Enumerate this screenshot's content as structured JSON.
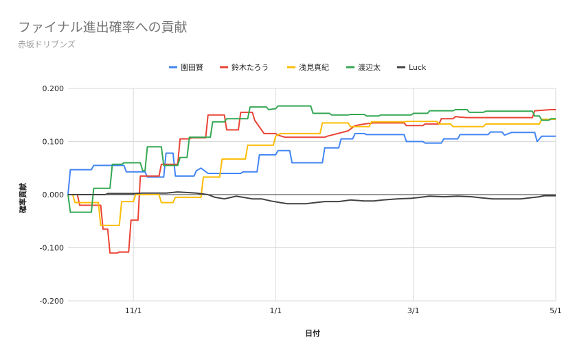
{
  "title": "ファイナル進出確率への貢献",
  "subtitle": "赤坂ドリブンズ",
  "chart_data": {
    "type": "line",
    "title": "ファイナル進出確率への貢献",
    "subtitle": "赤坂ドリブンズ",
    "xlabel": "日付",
    "ylabel": "確率貢献",
    "x_ticks": [
      "11/1",
      "1/1",
      "3/1",
      "5/1"
    ],
    "y_ticks": [
      "0.200",
      "0.100",
      "0.000",
      "-0.100",
      "-0.200"
    ],
    "y_tick_values": [
      0.2,
      0.1,
      0.0,
      -0.1,
      -0.2
    ],
    "ylim": [
      -0.2,
      0.2
    ],
    "xlim": [
      "2021-10-04",
      "2022-05-01"
    ],
    "grid": true,
    "legend_position": "top",
    "series": [
      {
        "name": "園田賢",
        "color": "#4285f4",
        "points": [
          [
            "2021-10-04",
            0.0
          ],
          [
            "2021-10-05",
            0.047
          ],
          [
            "2021-10-14",
            0.047
          ],
          [
            "2021-10-15",
            0.055
          ],
          [
            "2021-10-28",
            0.055
          ],
          [
            "2021-10-29",
            0.043
          ],
          [
            "2021-11-06",
            0.043
          ],
          [
            "2021-11-07",
            0.033
          ],
          [
            "2021-11-14",
            0.033
          ],
          [
            "2021-11-15",
            0.078
          ],
          [
            "2021-11-18",
            0.078
          ],
          [
            "2021-11-19",
            0.035
          ],
          [
            "2021-11-27",
            0.035
          ],
          [
            "2021-11-28",
            0.045
          ],
          [
            "2021-11-30",
            0.05
          ],
          [
            "2021-12-03",
            0.04
          ],
          [
            "2021-12-17",
            0.04
          ],
          [
            "2021-12-18",
            0.043
          ],
          [
            "2021-12-24",
            0.043
          ],
          [
            "2021-12-25",
            0.075
          ],
          [
            "2022-01-01",
            0.075
          ],
          [
            "2022-01-02",
            0.083
          ],
          [
            "2022-01-07",
            0.083
          ],
          [
            "2022-01-08",
            0.06
          ],
          [
            "2022-01-21",
            0.06
          ],
          [
            "2022-01-22",
            0.088
          ],
          [
            "2022-01-28",
            0.088
          ],
          [
            "2022-01-29",
            0.105
          ],
          [
            "2022-02-03",
            0.105
          ],
          [
            "2022-02-04",
            0.115
          ],
          [
            "2022-02-08",
            0.115
          ],
          [
            "2022-02-09",
            0.113
          ],
          [
            "2022-02-25",
            0.113
          ],
          [
            "2022-02-26",
            0.1
          ],
          [
            "2022-03-05",
            0.1
          ],
          [
            "2022-03-06",
            0.097
          ],
          [
            "2022-03-13",
            0.097
          ],
          [
            "2022-03-14",
            0.105
          ],
          [
            "2022-03-20",
            0.105
          ],
          [
            "2022-03-21",
            0.113
          ],
          [
            "2022-04-02",
            0.113
          ],
          [
            "2022-04-03",
            0.118
          ],
          [
            "2022-04-08",
            0.118
          ],
          [
            "2022-04-09",
            0.112
          ],
          [
            "2022-04-12",
            0.117
          ],
          [
            "2022-04-22",
            0.117
          ],
          [
            "2022-04-23",
            0.1
          ],
          [
            "2022-04-25",
            0.11
          ],
          [
            "2022-05-01",
            0.11
          ]
        ]
      },
      {
        "name": "鈴木たろう",
        "color": "#ea4335",
        "points": [
          [
            "2021-10-04",
            0.0
          ],
          [
            "2021-10-08",
            0.0
          ],
          [
            "2021-10-09",
            -0.02
          ],
          [
            "2021-10-18",
            -0.02
          ],
          [
            "2021-10-19",
            -0.065
          ],
          [
            "2021-10-21",
            -0.065
          ],
          [
            "2021-10-22",
            -0.11
          ],
          [
            "2021-10-25",
            -0.11
          ],
          [
            "2021-10-26",
            -0.108
          ],
          [
            "2021-10-30",
            -0.108
          ],
          [
            "2021-10-31",
            -0.048
          ],
          [
            "2021-11-03",
            -0.048
          ],
          [
            "2021-11-04",
            0.035
          ],
          [
            "2021-11-12",
            0.035
          ],
          [
            "2021-11-13",
            0.057
          ],
          [
            "2021-11-20",
            0.057
          ],
          [
            "2021-11-21",
            0.105
          ],
          [
            "2021-11-25",
            0.105
          ],
          [
            "2021-11-26",
            0.107
          ],
          [
            "2021-12-02",
            0.107
          ],
          [
            "2021-12-03",
            0.15
          ],
          [
            "2021-12-10",
            0.15
          ],
          [
            "2021-12-11",
            0.122
          ],
          [
            "2021-12-16",
            0.122
          ],
          [
            "2021-12-17",
            0.155
          ],
          [
            "2021-12-22",
            0.155
          ],
          [
            "2021-12-23",
            0.14
          ],
          [
            "2021-12-27",
            0.115
          ],
          [
            "2022-01-01",
            0.115
          ],
          [
            "2022-01-02",
            0.112
          ],
          [
            "2022-01-05",
            0.108
          ],
          [
            "2022-01-22",
            0.108
          ],
          [
            "2022-01-23",
            0.11
          ],
          [
            "2022-02-01",
            0.12
          ],
          [
            "2022-02-04",
            0.13
          ],
          [
            "2022-02-08",
            0.133
          ],
          [
            "2022-02-12",
            0.135
          ],
          [
            "2022-02-25",
            0.135
          ],
          [
            "2022-02-26",
            0.13
          ],
          [
            "2022-03-05",
            0.13
          ],
          [
            "2022-03-06",
            0.133
          ],
          [
            "2022-03-12",
            0.133
          ],
          [
            "2022-03-13",
            0.143
          ],
          [
            "2022-03-18",
            0.143
          ],
          [
            "2022-03-19",
            0.147
          ],
          [
            "2022-03-21",
            0.146
          ],
          [
            "2022-03-24",
            0.145
          ],
          [
            "2022-04-21",
            0.145
          ],
          [
            "2022-04-22",
            0.158
          ],
          [
            "2022-04-29",
            0.16
          ],
          [
            "2022-05-01",
            0.16
          ]
        ]
      },
      {
        "name": "浅見真紀",
        "color": "#fbbc04",
        "points": [
          [
            "2021-10-04",
            0.0
          ],
          [
            "2021-10-06",
            0.0
          ],
          [
            "2021-10-07",
            -0.015
          ],
          [
            "2021-10-17",
            -0.015
          ],
          [
            "2021-10-18",
            -0.058
          ],
          [
            "2021-10-26",
            -0.058
          ],
          [
            "2021-10-27",
            -0.013
          ],
          [
            "2021-11-01",
            -0.013
          ],
          [
            "2021-11-02",
            0.0
          ],
          [
            "2021-11-12",
            0.0
          ],
          [
            "2021-11-13",
            -0.015
          ],
          [
            "2021-11-18",
            -0.015
          ],
          [
            "2021-11-19",
            -0.005
          ],
          [
            "2021-11-30",
            -0.005
          ],
          [
            "2021-12-01",
            0.033
          ],
          [
            "2021-12-08",
            0.033
          ],
          [
            "2021-12-09",
            0.067
          ],
          [
            "2021-12-19",
            0.067
          ],
          [
            "2021-12-20",
            0.093
          ],
          [
            "2021-12-31",
            0.093
          ],
          [
            "2022-01-01",
            0.11
          ],
          [
            "2022-01-03",
            0.115
          ],
          [
            "2022-01-20",
            0.115
          ],
          [
            "2022-01-21",
            0.135
          ],
          [
            "2022-02-01",
            0.135
          ],
          [
            "2022-02-02",
            0.128
          ],
          [
            "2022-02-10",
            0.128
          ],
          [
            "2022-02-11",
            0.137
          ],
          [
            "2022-02-25",
            0.137
          ],
          [
            "2022-02-26",
            0.138
          ],
          [
            "2022-03-11",
            0.138
          ],
          [
            "2022-03-12",
            0.133
          ],
          [
            "2022-03-17",
            0.133
          ],
          [
            "2022-03-18",
            0.128
          ],
          [
            "2022-03-31",
            0.128
          ],
          [
            "2022-04-01",
            0.133
          ],
          [
            "2022-04-24",
            0.133
          ],
          [
            "2022-04-25",
            0.142
          ],
          [
            "2022-05-01",
            0.142
          ]
        ]
      },
      {
        "name": "渡辺太",
        "color": "#34a853",
        "points": [
          [
            "2021-10-04",
            0.0
          ],
          [
            "2021-10-05",
            -0.033
          ],
          [
            "2021-10-14",
            -0.033
          ],
          [
            "2021-10-15",
            0.012
          ],
          [
            "2021-10-22",
            0.012
          ],
          [
            "2021-10-23",
            0.057
          ],
          [
            "2021-10-27",
            0.057
          ],
          [
            "2021-10-28",
            0.06
          ],
          [
            "2021-11-04",
            0.06
          ],
          [
            "2021-11-05",
            0.045
          ],
          [
            "2021-11-06",
            0.045
          ],
          [
            "2021-11-07",
            0.09
          ],
          [
            "2021-11-13",
            0.09
          ],
          [
            "2021-11-14",
            0.055
          ],
          [
            "2021-11-20",
            0.055
          ],
          [
            "2021-11-21",
            0.07
          ],
          [
            "2021-11-24",
            0.07
          ],
          [
            "2021-11-25",
            0.108
          ],
          [
            "2021-12-04",
            0.108
          ],
          [
            "2021-12-05",
            0.137
          ],
          [
            "2021-12-10",
            0.137
          ],
          [
            "2021-12-11",
            0.143
          ],
          [
            "2021-12-20",
            0.143
          ],
          [
            "2021-12-21",
            0.165
          ],
          [
            "2021-12-28",
            0.165
          ],
          [
            "2021-12-29",
            0.16
          ],
          [
            "2022-01-01",
            0.162
          ],
          [
            "2022-01-02",
            0.167
          ],
          [
            "2022-01-16",
            0.167
          ],
          [
            "2022-01-17",
            0.153
          ],
          [
            "2022-01-24",
            0.153
          ],
          [
            "2022-01-25",
            0.15
          ],
          [
            "2022-02-01",
            0.15
          ],
          [
            "2022-02-02",
            0.151
          ],
          [
            "2022-02-08",
            0.151
          ],
          [
            "2022-02-09",
            0.148
          ],
          [
            "2022-02-14",
            0.148
          ],
          [
            "2022-02-15",
            0.15
          ],
          [
            "2022-02-28",
            0.15
          ],
          [
            "2022-03-01",
            0.153
          ],
          [
            "2022-03-07",
            0.153
          ],
          [
            "2022-03-08",
            0.158
          ],
          [
            "2022-03-18",
            0.158
          ],
          [
            "2022-03-19",
            0.16
          ],
          [
            "2022-03-24",
            0.16
          ],
          [
            "2022-03-25",
            0.155
          ],
          [
            "2022-03-31",
            0.155
          ],
          [
            "2022-04-01",
            0.157
          ],
          [
            "2022-04-21",
            0.157
          ],
          [
            "2022-04-22",
            0.148
          ],
          [
            "2022-04-24",
            0.148
          ],
          [
            "2022-04-25",
            0.14
          ],
          [
            "2022-04-28",
            0.14
          ],
          [
            "2022-04-29",
            0.143
          ],
          [
            "2022-05-01",
            0.143
          ]
        ]
      },
      {
        "name": "Luck",
        "color": "#424242",
        "points": [
          [
            "2021-10-04",
            0.0
          ],
          [
            "2021-10-20",
            0.0
          ],
          [
            "2021-10-21",
            0.002
          ],
          [
            "2021-11-01",
            0.002
          ],
          [
            "2021-11-05",
            0.003
          ],
          [
            "2021-11-15",
            0.003
          ],
          [
            "2021-11-20",
            0.005
          ],
          [
            "2021-11-28",
            0.003
          ],
          [
            "2021-12-03",
            0.0
          ],
          [
            "2021-12-06",
            -0.005
          ],
          [
            "2021-12-10",
            -0.008
          ],
          [
            "2021-12-13",
            -0.005
          ],
          [
            "2021-12-15",
            -0.003
          ],
          [
            "2021-12-18",
            -0.005
          ],
          [
            "2021-12-22",
            -0.008
          ],
          [
            "2021-12-26",
            -0.008
          ],
          [
            "2021-12-30",
            -0.012
          ],
          [
            "2022-01-03",
            -0.015
          ],
          [
            "2022-01-06",
            -0.017
          ],
          [
            "2022-01-14",
            -0.017
          ],
          [
            "2022-01-18",
            -0.015
          ],
          [
            "2022-01-22",
            -0.013
          ],
          [
            "2022-01-28",
            -0.013
          ],
          [
            "2022-02-02",
            -0.01
          ],
          [
            "2022-02-08",
            -0.012
          ],
          [
            "2022-02-12",
            -0.012
          ],
          [
            "2022-02-16",
            -0.01
          ],
          [
            "2022-02-22",
            -0.008
          ],
          [
            "2022-02-28",
            -0.007
          ],
          [
            "2022-03-04",
            -0.005
          ],
          [
            "2022-03-08",
            -0.003
          ],
          [
            "2022-03-14",
            -0.004
          ],
          [
            "2022-03-20",
            -0.003
          ],
          [
            "2022-03-26",
            -0.004
          ],
          [
            "2022-03-30",
            -0.006
          ],
          [
            "2022-04-04",
            -0.008
          ],
          [
            "2022-04-08",
            -0.008
          ],
          [
            "2022-04-16",
            -0.008
          ],
          [
            "2022-04-20",
            -0.006
          ],
          [
            "2022-04-24",
            -0.004
          ],
          [
            "2022-04-26",
            -0.002
          ],
          [
            "2022-05-01",
            -0.002
          ]
        ]
      }
    ]
  }
}
